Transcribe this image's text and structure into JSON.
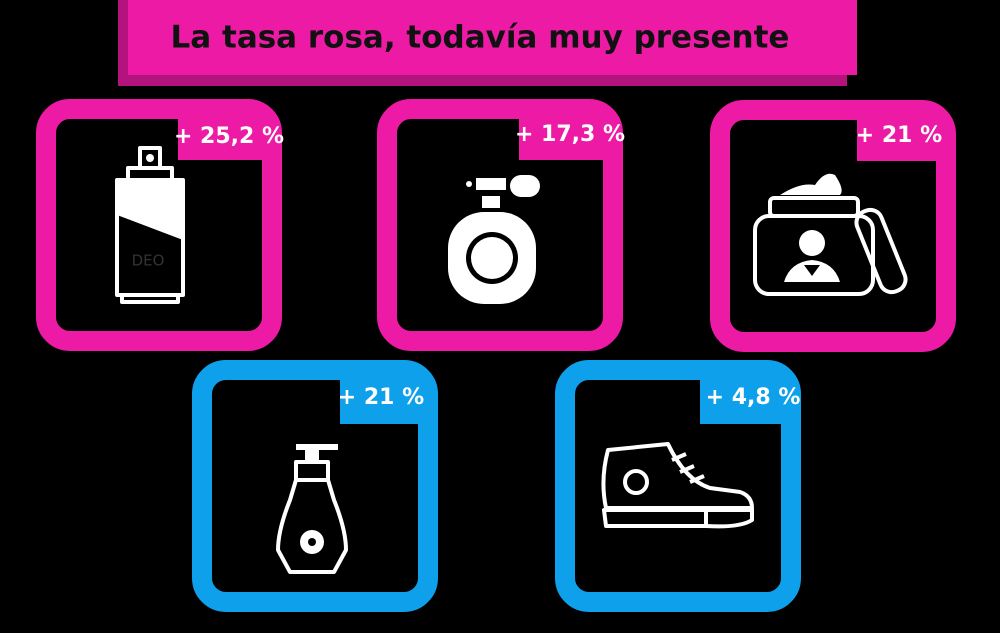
{
  "title": "La tasa rosa, todavía muy presente",
  "cards": [
    {
      "label": "+ 25,2 %",
      "icon_text": "DEO"
    },
    {
      "label": "+ 17,3 %"
    },
    {
      "label": "+ 21 %"
    },
    {
      "label": "+ 21 %"
    },
    {
      "label": "+ 4,8 %"
    }
  ]
}
